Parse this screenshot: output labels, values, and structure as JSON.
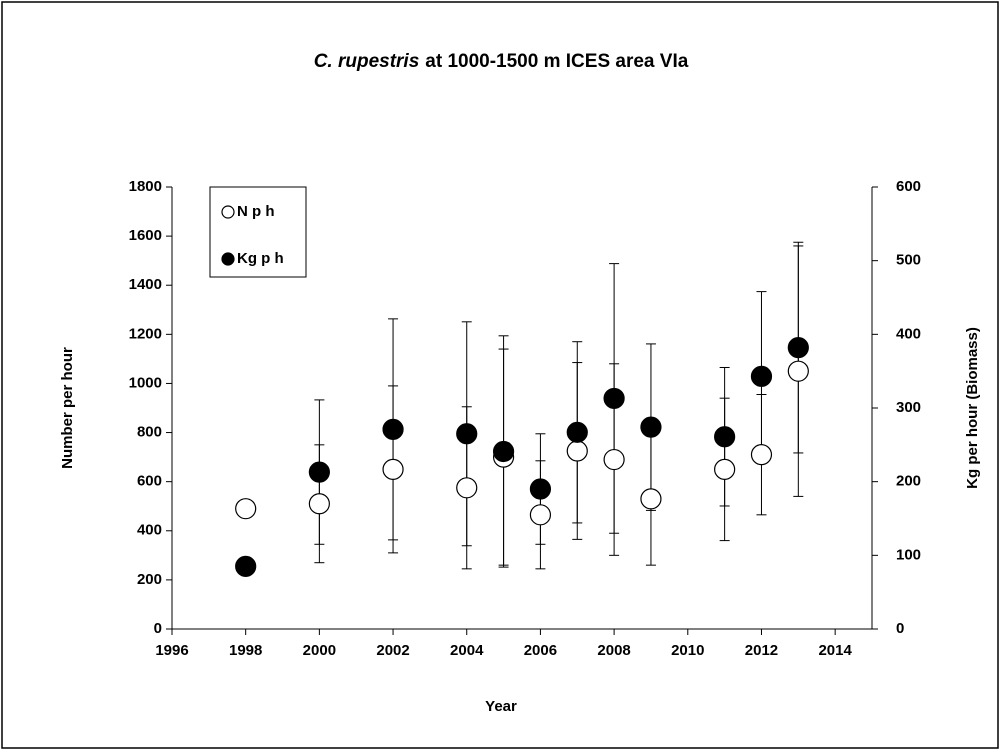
{
  "chart_data": {
    "type": "scatter",
    "title_species": "C. rupestris",
    "title": "at 1000-1500 m ICES area VIa",
    "x_label": "Year",
    "y_label": "Number per hour",
    "y2_label": "Kg per hour (Biomass)",
    "x": [
      1998,
      2000,
      2002,
      2004,
      2005,
      2006,
      2007,
      2008,
      2009,
      2011,
      2012,
      2013
    ],
    "series": [
      {
        "name": "N p h",
        "color": "#ffffff",
        "marker": "open",
        "values": [
          490,
          510,
          650,
          575,
          700,
          465,
          725,
          690,
          530,
          650,
          710,
          1050
        ],
        "errors": [
          null,
          240,
          340,
          330,
          440,
          220,
          360,
          390,
          270,
          290,
          245,
          510
        ]
      },
      {
        "name": "Kg p h",
        "color": "#000000",
        "marker": "filled",
        "axis": "y2",
        "values": [
          85,
          213,
          271,
          265,
          241,
          190,
          267,
          313,
          274,
          261,
          343,
          382
        ],
        "errors": [
          null,
          98,
          150,
          152,
          157,
          75,
          123,
          183,
          113,
          94,
          115,
          143
        ]
      }
    ],
    "xlim": [
      1996,
      2015
    ],
    "xticks": [
      1996,
      1998,
      2000,
      2002,
      2004,
      2006,
      2008,
      2010,
      2012,
      2014
    ],
    "ylim": [
      0,
      1800
    ],
    "yticks": [
      0,
      200,
      400,
      600,
      800,
      1000,
      1200,
      1400,
      1600,
      1800
    ],
    "y2lim": [
      0,
      600
    ],
    "y2ticks": [
      0,
      100,
      200,
      300,
      400,
      500,
      600
    ],
    "legend": "upper left"
  }
}
